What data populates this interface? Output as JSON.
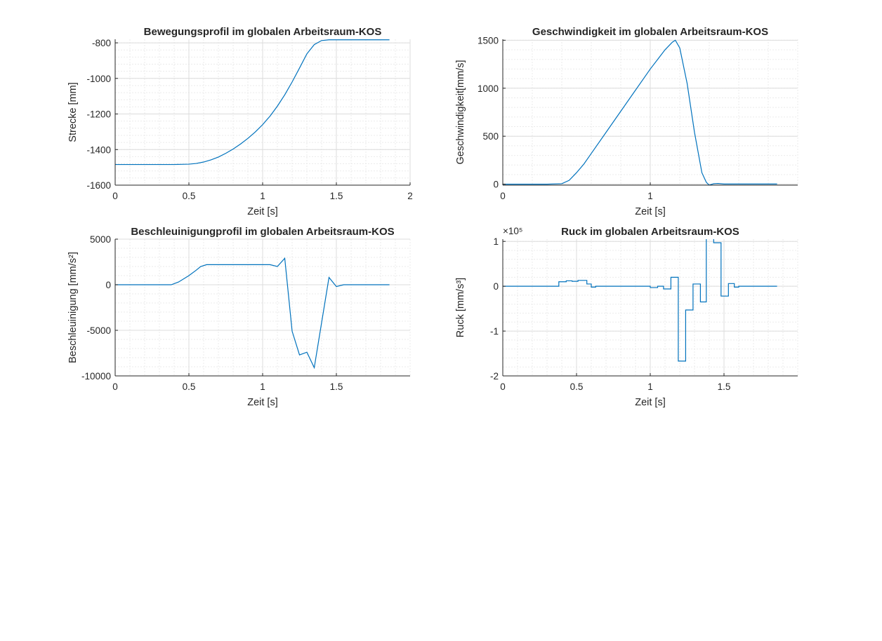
{
  "chart_data": [
    {
      "type": "line",
      "title": "Bewegungsprofil im globalen Arbeitsraum-KOS",
      "xlabel": "Zeit [s]",
      "ylabel": "Strecke [mm]",
      "xlim": [
        0,
        2
      ],
      "ylim": [
        -1600,
        -780
      ],
      "xticks": [
        0,
        0.5,
        1,
        1.5,
        2
      ],
      "xticklabels": [
        "0",
        "0.5",
        "1",
        "1.5",
        "2"
      ],
      "yticks": [
        -1600,
        -1400,
        -1200,
        -1000,
        -800
      ],
      "yticklabels": [
        "-1600",
        "-1400",
        "-1200",
        "-1000",
        "-800"
      ],
      "grid": true,
      "series": [
        {
          "x": [
            0,
            0.1,
            0.2,
            0.3,
            0.4,
            0.45,
            0.5,
            0.55,
            0.6,
            0.65,
            0.7,
            0.75,
            0.8,
            0.85,
            0.9,
            0.95,
            1.0,
            1.05,
            1.1,
            1.15,
            1.2,
            1.25,
            1.3,
            1.35,
            1.4,
            1.45,
            1.5,
            1.6,
            1.7,
            1.8,
            1.86
          ],
          "y": [
            -1484,
            -1484,
            -1484,
            -1484,
            -1484,
            -1483,
            -1482,
            -1478,
            -1470,
            -1458,
            -1442,
            -1421,
            -1397,
            -1369,
            -1337,
            -1301,
            -1260,
            -1212,
            -1156,
            -1092,
            -1020,
            -942,
            -862,
            -810,
            -787,
            -783,
            -783,
            -783,
            -783,
            -783,
            -783
          ],
          "color": "#0072BD"
        }
      ]
    },
    {
      "type": "line",
      "title": "Geschwindigkeit im globalen Arbeitsraum-KOS",
      "xlabel": "Zeit [s]",
      "ylabel": "Geschwindigkeit[mm/s]",
      "xlim": [
        0,
        2
      ],
      "ylim": [
        -10,
        1510
      ],
      "xticks": [
        0,
        1
      ],
      "xticklabels": [
        "0",
        "1"
      ],
      "yticks": [
        0,
        500,
        1000,
        1500
      ],
      "yticklabels": [
        "0",
        "500",
        "1000",
        "1500"
      ],
      "grid": true,
      "series": [
        {
          "x": [
            0,
            0.1,
            0.2,
            0.3,
            0.4,
            0.45,
            0.5,
            0.55,
            0.6,
            0.7,
            0.8,
            0.9,
            1.0,
            1.05,
            1.1,
            1.15,
            1.17,
            1.2,
            1.25,
            1.3,
            1.35,
            1.38,
            1.4,
            1.43,
            1.46,
            1.5,
            1.6,
            1.7,
            1.8,
            1.86
          ],
          "y": [
            0,
            0,
            0,
            0,
            5,
            40,
            120,
            210,
            320,
            540,
            760,
            980,
            1200,
            1300,
            1400,
            1480,
            1500,
            1420,
            1050,
            540,
            120,
            20,
            -10,
            5,
            8,
            2,
            2,
            2,
            2,
            2
          ],
          "color": "#0072BD"
        }
      ]
    },
    {
      "type": "line",
      "title": "Beschleuinigungprofil im globalen Arbeitsraum-KOS",
      "xlabel": "Zeit [s]",
      "ylabel": "Beschleuinigung [mm/s²]",
      "xlim": [
        0,
        2
      ],
      "ylim": [
        -10000,
        5000
      ],
      "xticks": [
        0,
        0.5,
        1,
        1.5
      ],
      "xticklabels": [
        "0",
        "0.5",
        "1",
        "1.5"
      ],
      "yticks": [
        -10000,
        -5000,
        0,
        5000
      ],
      "yticklabels": [
        "-10000",
        "-5000",
        "0",
        "5000"
      ],
      "grid": true,
      "series": [
        {
          "x": [
            0,
            0.2,
            0.33,
            0.38,
            0.43,
            0.5,
            0.55,
            0.58,
            0.62,
            0.7,
            0.8,
            0.9,
            1.0,
            1.05,
            1.1,
            1.15,
            1.2,
            1.25,
            1.3,
            1.35,
            1.45,
            1.5,
            1.55,
            1.6,
            1.7,
            1.86
          ],
          "y": [
            0,
            0,
            0,
            0,
            300,
            1000,
            1600,
            2000,
            2200,
            2200,
            2200,
            2200,
            2200,
            2200,
            2000,
            2900,
            -5100,
            -7700,
            -7400,
            -9100,
            800,
            -200,
            0,
            0,
            0,
            0
          ],
          "color": "#0072BD"
        }
      ]
    },
    {
      "type": "line",
      "title": "Ruck im globalen Arbeitsraum-KOS",
      "xlabel": "Zeit [s]",
      "ylabel": "Ruck [mm/s³]",
      "yexponent": "×10⁵",
      "xlim": [
        0,
        2
      ],
      "ylim": [
        -2,
        1.05
      ],
      "xticks": [
        0,
        0.5,
        1,
        1.5
      ],
      "xticklabels": [
        "0",
        "0.5",
        "1",
        "1.5"
      ],
      "yticks": [
        -2,
        -1,
        0,
        1
      ],
      "yticklabels": [
        "-2",
        "-1",
        "0",
        "1"
      ],
      "grid": true,
      "series": [
        {
          "x": [
            0,
            0.38,
            0.38,
            0.43,
            0.43,
            0.47,
            0.47,
            0.51,
            0.51,
            0.57,
            0.57,
            0.6,
            0.6,
            0.63,
            0.63,
            0.67,
            0.67,
            1.0,
            1.0,
            1.05,
            1.05,
            1.09,
            1.09,
            1.14,
            1.14,
            1.19,
            1.19,
            1.24,
            1.24,
            1.29,
            1.29,
            1.34,
            1.34,
            1.38,
            1.38,
            1.43,
            1.43,
            1.48,
            1.48,
            1.53,
            1.53,
            1.57,
            1.57,
            1.6,
            1.6,
            1.86
          ],
          "y": [
            0,
            0,
            0.1,
            0.1,
            0.12,
            0.12,
            0.11,
            0.11,
            0.13,
            0.13,
            0.05,
            0.05,
            -0.02,
            -0.02,
            0,
            0,
            0,
            0,
            -0.03,
            -0.03,
            0,
            0,
            -0.06,
            -0.06,
            0.2,
            0.2,
            -1.67,
            -1.67,
            -0.53,
            -0.53,
            0.05,
            0.05,
            -0.35,
            -0.35,
            1.07,
            1.07,
            0.97,
            0.97,
            -0.22,
            -0.22,
            0.06,
            0.06,
            -0.02,
            -0.02,
            0,
            0
          ],
          "color": "#0072BD"
        }
      ]
    }
  ]
}
